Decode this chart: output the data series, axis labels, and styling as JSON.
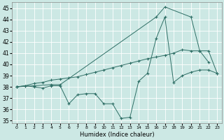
{
  "xlabel": "Humidex (Indice chaleur)",
  "bg_color": "#cce8e4",
  "grid_color": "#ffffff",
  "line_color": "#2e6e65",
  "xlim": [
    -0.5,
    23.5
  ],
  "ylim": [
    34.8,
    45.5
  ],
  "yticks": [
    35,
    36,
    37,
    38,
    39,
    40,
    41,
    42,
    43,
    44,
    45
  ],
  "xticks": [
    0,
    1,
    2,
    3,
    4,
    5,
    6,
    7,
    8,
    9,
    10,
    11,
    12,
    13,
    14,
    15,
    16,
    17,
    18,
    19,
    20,
    21,
    22,
    23
  ],
  "line1_x": [
    0,
    1,
    2,
    3,
    4,
    5,
    6,
    7,
    8,
    9,
    10,
    11,
    12,
    13,
    14,
    15,
    16,
    17,
    18,
    19,
    20,
    21,
    22,
    23
  ],
  "line1_y": [
    38.0,
    38.1,
    38.0,
    37.9,
    38.1,
    38.1,
    36.5,
    37.3,
    37.4,
    37.4,
    36.5,
    36.5,
    35.2,
    35.3,
    38.5,
    39.2,
    42.3,
    44.2,
    38.4,
    39.0,
    39.3,
    39.5,
    39.5,
    39.2
  ],
  "line2_x": [
    0,
    1,
    2,
    3,
    4,
    5,
    6,
    7,
    8,
    9,
    10,
    11,
    12,
    13,
    14,
    15,
    16,
    17,
    18,
    19,
    20,
    21,
    22
  ],
  "line2_y": [
    38.0,
    38.1,
    38.3,
    38.4,
    38.6,
    38.7,
    38.8,
    38.9,
    39.1,
    39.3,
    39.5,
    39.7,
    39.9,
    40.1,
    40.3,
    40.5,
    40.65,
    40.8,
    41.0,
    41.3,
    41.2,
    41.2,
    40.2
  ],
  "line3_x": [
    0,
    2,
    4,
    5,
    16,
    17,
    20,
    21,
    22,
    23
  ],
  "line3_y": [
    38.0,
    38.1,
    38.2,
    38.2,
    44.2,
    45.1,
    44.2,
    41.2,
    41.2,
    39.2
  ]
}
